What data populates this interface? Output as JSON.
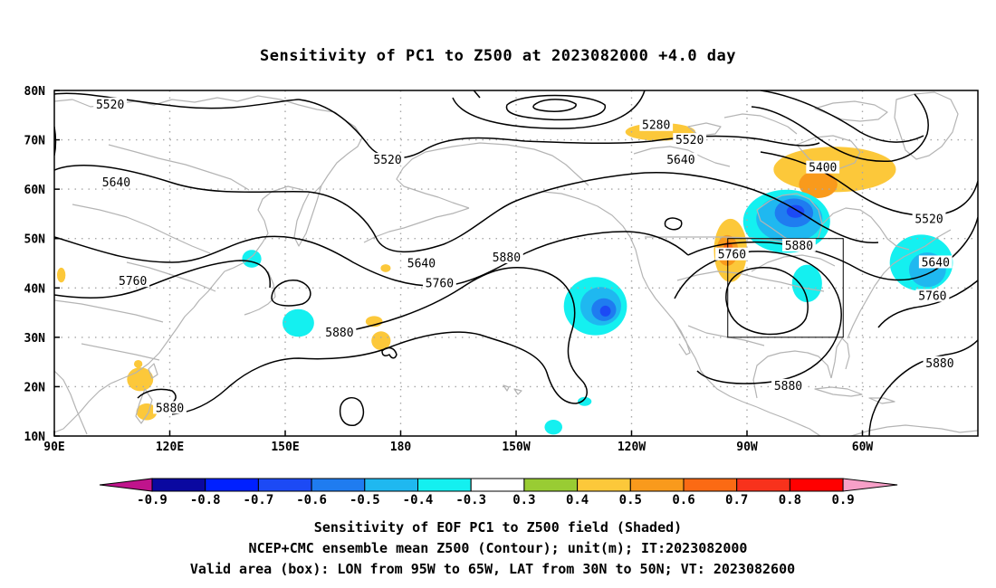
{
  "title": "Sensitivity of PC1 to Z500 at 2023082000 +4.0 day",
  "axes": {
    "lon_ticks": [
      "90E",
      "120E",
      "150E",
      "180",
      "150W",
      "120W",
      "90W",
      "60W"
    ],
    "lat_ticks": [
      "80N",
      "70N",
      "60N",
      "50N",
      "40N",
      "30N",
      "20N",
      "10N"
    ],
    "lon_range": [
      90,
      330
    ],
    "lat_range": [
      10,
      80
    ],
    "grid": "dotted"
  },
  "colorbar": {
    "labels": [
      "-0.9",
      "-0.8",
      "-0.7",
      "-0.6",
      "-0.5",
      "-0.4",
      "-0.3",
      "0.3",
      "0.4",
      "0.5",
      "0.6",
      "0.7",
      "0.8",
      "0.9"
    ],
    "colors": [
      "#0a08a0",
      "#0020ff",
      "#1c4af5",
      "#1f7cf0",
      "#1fb8f0",
      "#14f0f0",
      "#ffffff",
      "#99cc33",
      "#fcc83a",
      "#f99a1c",
      "#fb6a14",
      "#f8321c",
      "#ff0000"
    ],
    "low_extend_color": "#c0148c",
    "high_extend_color": "#f7a0c8"
  },
  "contour_labels": [
    {
      "text": "5520",
      "lon": 104.5,
      "lat": 77.1
    },
    {
      "text": "5280",
      "lon": 246.4,
      "lat": 72.9
    },
    {
      "text": "5520",
      "lon": 255.1,
      "lat": 69.9
    },
    {
      "text": "5520",
      "lon": 176.6,
      "lat": 65.9
    },
    {
      "text": "5640",
      "lon": 106.1,
      "lat": 61.3
    },
    {
      "text": "5640",
      "lon": 252.8,
      "lat": 65.9
    },
    {
      "text": "5400",
      "lon": 289.7,
      "lat": 64.3
    },
    {
      "text": "5640",
      "lon": 185.4,
      "lat": 44.9
    },
    {
      "text": "5760",
      "lon": 110.4,
      "lat": 41.3
    },
    {
      "text": "5760",
      "lon": 190.1,
      "lat": 40.9
    },
    {
      "text": "5880",
      "lon": 207.5,
      "lat": 46.1
    },
    {
      "text": "5760",
      "lon": 266.1,
      "lat": 46.7
    },
    {
      "text": "5880",
      "lon": 283.5,
      "lat": 48.5
    },
    {
      "text": "5520",
      "lon": 317.3,
      "lat": 53.9
    },
    {
      "text": "5640",
      "lon": 319.0,
      "lat": 45.1
    },
    {
      "text": "5760",
      "lon": 318.2,
      "lat": 38.3
    },
    {
      "text": "5880",
      "lon": 164.1,
      "lat": 30.9
    },
    {
      "text": "5880",
      "lon": 120.0,
      "lat": 15.6
    },
    {
      "text": "5880",
      "lon": 280.7,
      "lat": 20.1
    },
    {
      "text": "5880",
      "lon": 320.1,
      "lat": 24.7
    }
  ],
  "shaded_regions": [
    {
      "value": 0.4,
      "lon": 247.5,
      "lat": 71.6,
      "rx": 9.1,
      "ry": 1.8
    },
    {
      "value": 0.4,
      "lon": 292.8,
      "lat": 64.0,
      "rx": 15.9,
      "ry": 4.6
    },
    {
      "value": 0.5,
      "lon": 288.5,
      "lat": 61.0,
      "rx": 5.0,
      "ry": 2.8
    },
    {
      "value": 0.4,
      "lon": 265.7,
      "lat": 47.6,
      "rx": 4.3,
      "ry": 6.4
    },
    {
      "value": 0.5,
      "lon": 264.9,
      "lat": 47.6,
      "rx": 2.8,
      "ry": 3.1
    },
    {
      "value": 0.6,
      "lon": 265.1,
      "lat": 47.9,
      "rx": 1.2,
      "ry": 1.5
    },
    {
      "value": -0.4,
      "lon": 280.3,
      "lat": 53.5,
      "rx": 11.3,
      "ry": 6.4
    },
    {
      "value": -0.5,
      "lon": 281.0,
      "lat": 54.0,
      "rx": 8.6,
      "ry": 4.8
    },
    {
      "value": -0.6,
      "lon": 282.2,
      "lat": 55.2,
      "rx": 5.0,
      "ry": 2.9
    },
    {
      "value": -0.7,
      "lon": 282.6,
      "lat": 55.5,
      "rx": 2.3,
      "ry": 1.3
    },
    {
      "value": -0.4,
      "lon": 285.6,
      "lat": 40.9,
      "rx": 3.9,
      "ry": 3.8
    },
    {
      "value": -0.4,
      "lon": 315.3,
      "lat": 45.1,
      "rx": 8.2,
      "ry": 5.7
    },
    {
      "value": -0.5,
      "lon": 316.9,
      "lat": 43.7,
      "rx": 4.8,
      "ry": 3.5
    },
    {
      "value": -0.4,
      "lon": 230.6,
      "lat": 36.3,
      "rx": 8.2,
      "ry": 5.9
    },
    {
      "value": -0.5,
      "lon": 232.0,
      "lat": 36.3,
      "rx": 5.3,
      "ry": 3.9
    },
    {
      "value": -0.6,
      "lon": 232.8,
      "lat": 35.6,
      "rx": 3.2,
      "ry": 2.3
    },
    {
      "value": -0.7,
      "lon": 233.2,
      "lat": 35.3,
      "rx": 1.4,
      "ry": 1.1
    },
    {
      "value": -0.4,
      "lon": 227.8,
      "lat": 17.0,
      "rx": 1.8,
      "ry": 0.9
    },
    {
      "value": -0.4,
      "lon": 219.7,
      "lat": 11.8,
      "rx": 2.3,
      "ry": 1.5
    },
    {
      "value": -0.4,
      "lon": 153.4,
      "lat": 32.9,
      "rx": 4.1,
      "ry": 2.8
    },
    {
      "value": -0.4,
      "lon": 141.3,
      "lat": 45.9,
      "rx": 2.5,
      "ry": 1.8
    },
    {
      "value": 0.4,
      "lon": 173.1,
      "lat": 33.2,
      "rx": 2.2,
      "ry": 1.1
    },
    {
      "value": 0.4,
      "lon": 174.9,
      "lat": 29.3,
      "rx": 2.5,
      "ry": 1.9
    },
    {
      "value": 0.4,
      "lon": 176.1,
      "lat": 44.0,
      "rx": 1.3,
      "ry": 0.8
    },
    {
      "value": 0.4,
      "lon": 91.8,
      "lat": 42.6,
      "rx": 1.1,
      "ry": 1.5
    },
    {
      "value": 0.4,
      "lon": 112.3,
      "lat": 21.5,
      "rx": 3.4,
      "ry": 2.4
    },
    {
      "value": 0.4,
      "lon": 114.0,
      "lat": 14.9,
      "rx": 2.7,
      "ry": 1.7
    },
    {
      "value": 0.4,
      "lon": 111.8,
      "lat": 24.6,
      "rx": 1.1,
      "ry": 0.8
    }
  ],
  "valid_box": {
    "lon": [
      265,
      295
    ],
    "lat": [
      30,
      50
    ]
  },
  "caption": {
    "line1": "Sensitivity of EOF PC1 to Z500 field (Shaded)",
    "line2": "NCEP+CMC ensemble mean Z500 (Contour); unit(m); IT:2023082000",
    "line3": "Valid area (box): LON from 95W to 65W, LAT from 30N to 50N; VT: 2023082600"
  }
}
